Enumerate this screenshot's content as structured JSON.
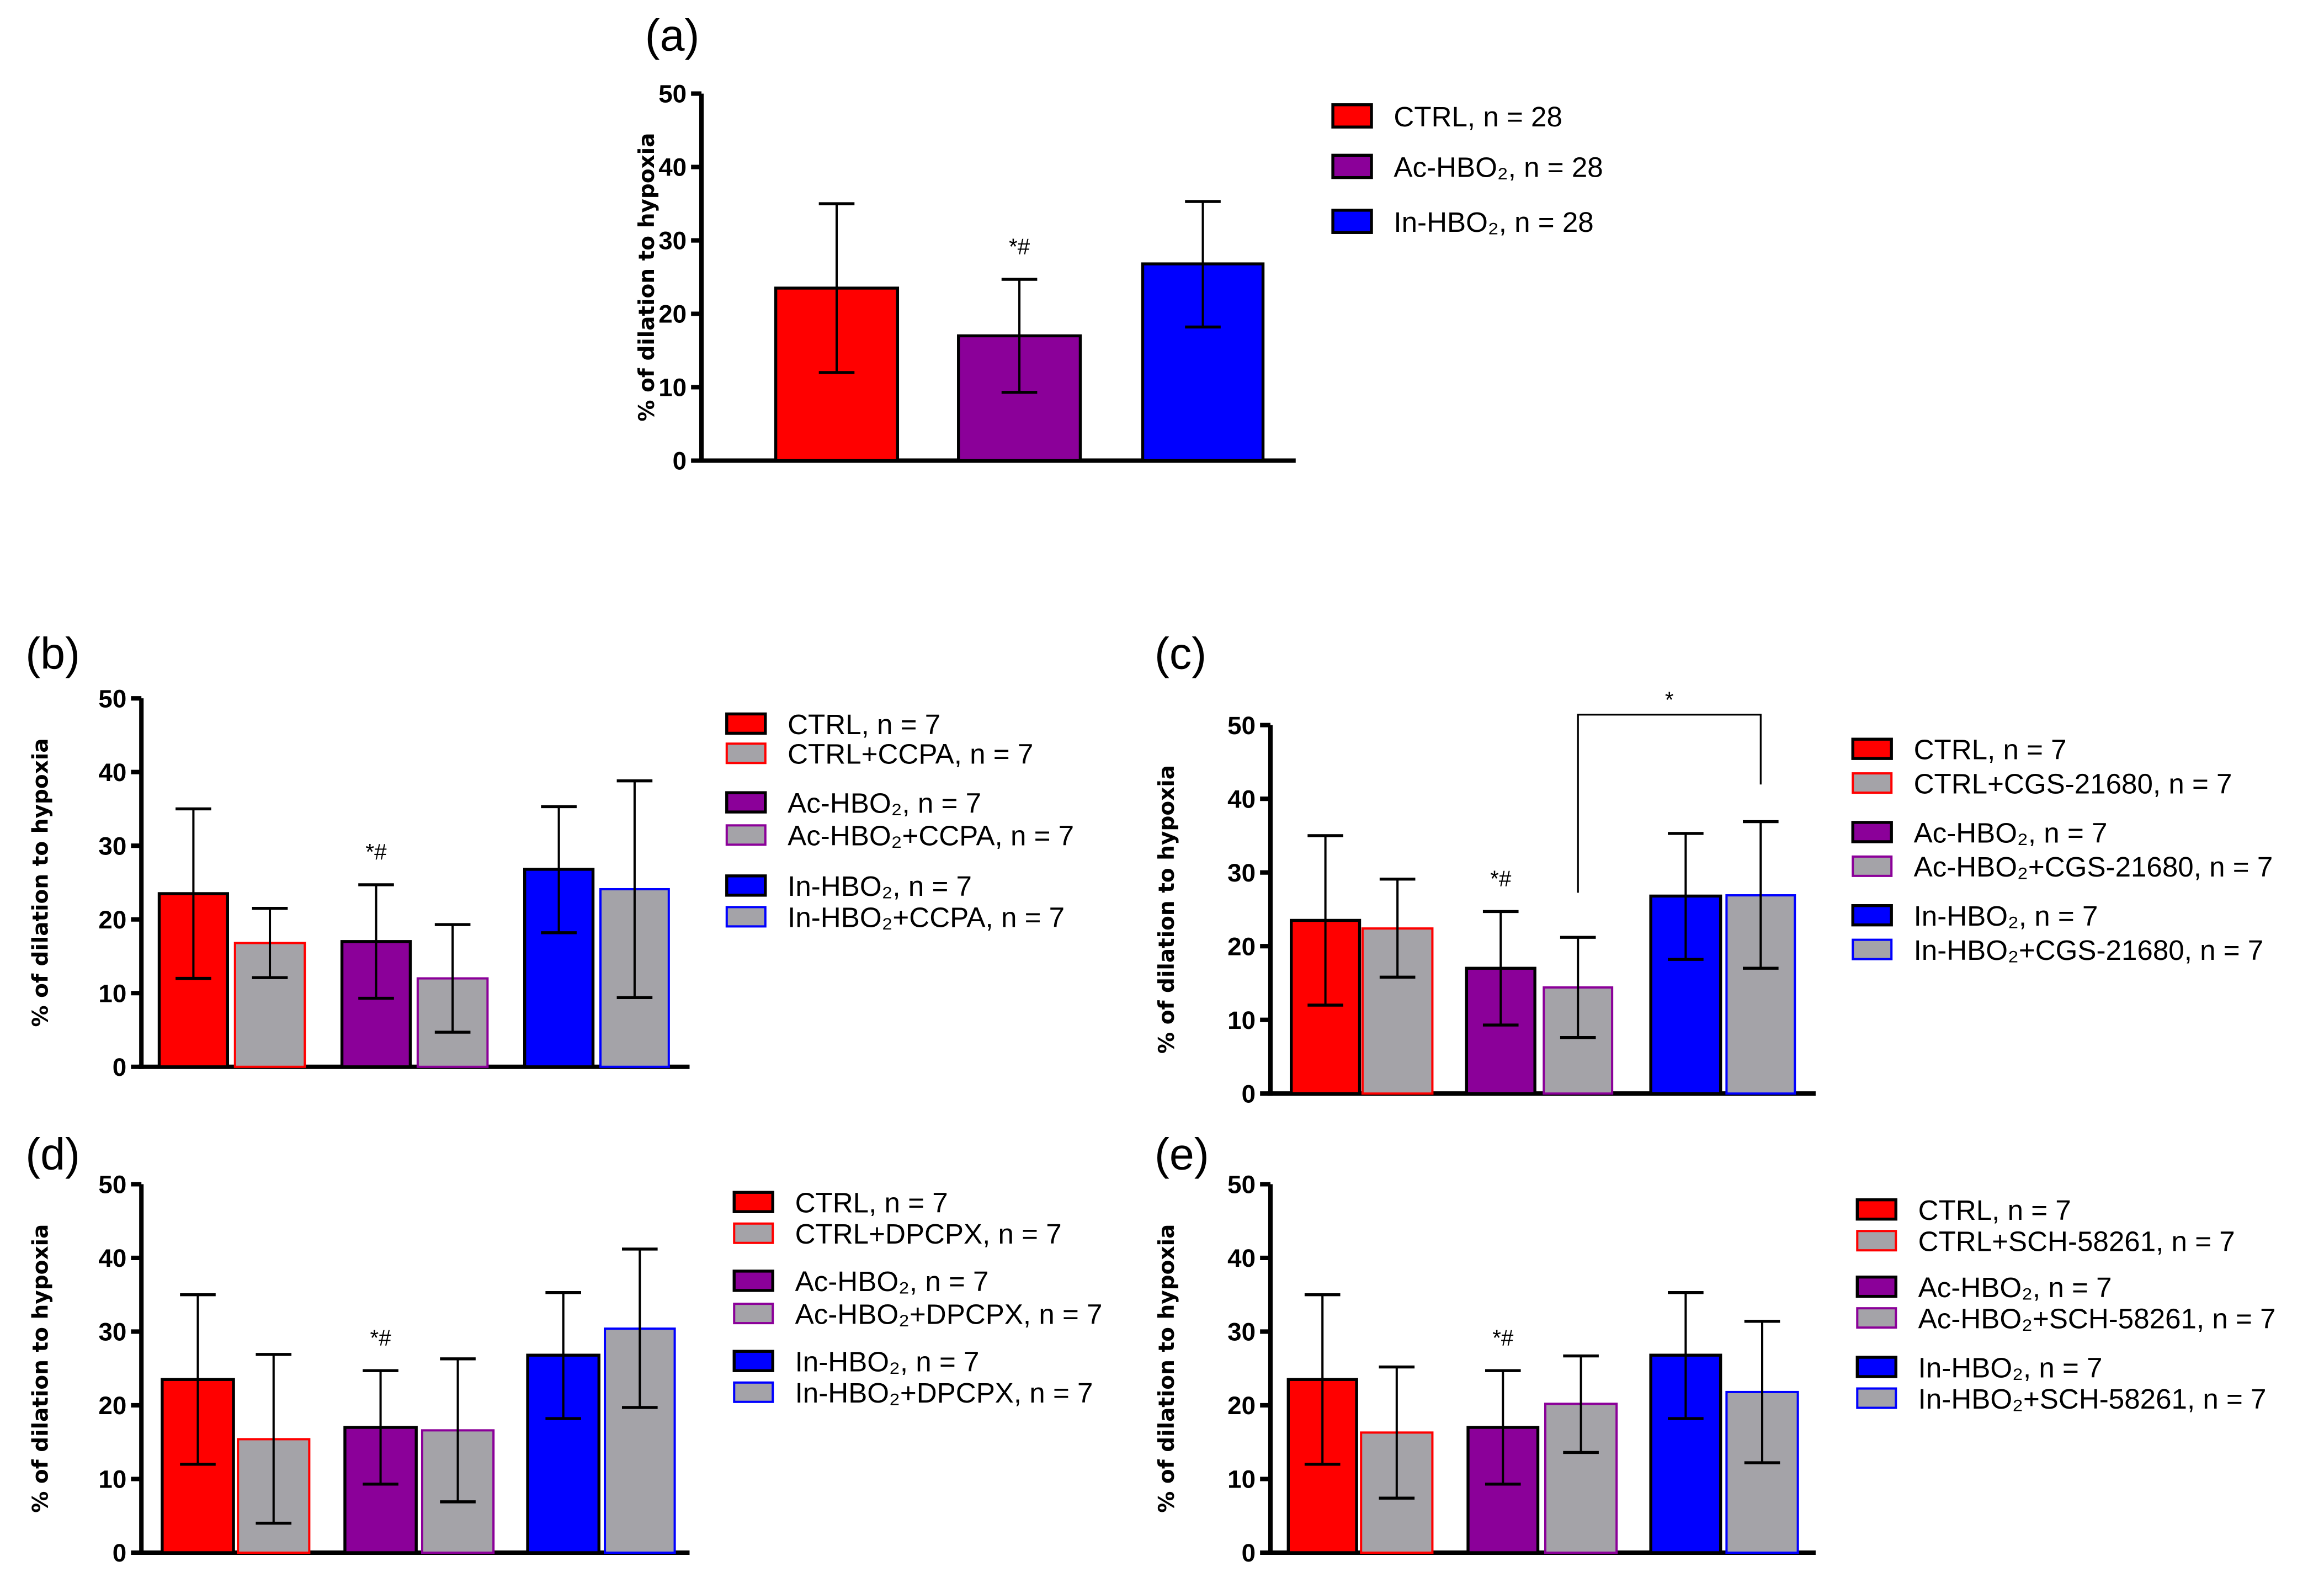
{
  "chart_data": [
    {
      "panel": "(a)",
      "type": "bar",
      "ylabel": "% of dilation to hypoxia",
      "ylim": [
        0,
        50
      ],
      "yticks": [
        "0",
        "10",
        "20",
        "30",
        "40",
        "50"
      ],
      "series": [
        {
          "name": "CTRL, n = 28",
          "value": 23.5,
          "err_low": 12.0,
          "err_high": 35.0,
          "fill": "#ff0000",
          "stroke": "#000000",
          "annotation": ""
        },
        {
          "name": "Ac-HBO₂, n = 28",
          "value": 17.0,
          "err_low": 9.3,
          "err_high": 24.7,
          "fill": "#8b0099",
          "stroke": "#000000",
          "annotation": "*#"
        },
        {
          "name": "In-HBO₂, n = 28",
          "value": 26.8,
          "err_low": 18.2,
          "err_high": 35.3,
          "fill": "#0000ff",
          "stroke": "#000000",
          "annotation": ""
        }
      ]
    },
    {
      "panel": "(b)",
      "type": "bar",
      "ylabel": "% of dilation to hypoxia",
      "ylim": [
        0,
        50
      ],
      "yticks": [
        "0",
        "10",
        "20",
        "30",
        "40",
        "50"
      ],
      "series": [
        {
          "name": "CTRL, n = 7",
          "value": 23.5,
          "err_low": 12.0,
          "err_high": 35.0,
          "fill": "#ff0000",
          "stroke": "#000000",
          "annotation": ""
        },
        {
          "name": "CTRL+CCPA, n = 7",
          "value": 16.8,
          "err_low": 12.1,
          "err_high": 21.5,
          "fill": "#a4a3a8",
          "stroke": "#ff0000",
          "annotation": ""
        },
        {
          "name": "Ac-HBO₂, n = 7",
          "value": 17.0,
          "err_low": 9.3,
          "err_high": 24.7,
          "fill": "#8b0099",
          "stroke": "#000000",
          "annotation": "*#"
        },
        {
          "name": "Ac-HBO₂+CCPA, n = 7",
          "value": 12.0,
          "err_low": 4.7,
          "err_high": 19.3,
          "fill": "#a4a3a8",
          "stroke": "#8b0099",
          "annotation": ""
        },
        {
          "name": "In-HBO₂, n = 7",
          "value": 26.8,
          "err_low": 18.2,
          "err_high": 35.3,
          "fill": "#0000ff",
          "stroke": "#000000",
          "annotation": ""
        },
        {
          "name": "In-HBO₂+CCPA, n = 7",
          "value": 24.1,
          "err_low": 9.4,
          "err_high": 38.8,
          "fill": "#a4a3a8",
          "stroke": "#0000ff",
          "annotation": ""
        }
      ]
    },
    {
      "panel": "(c)",
      "type": "bar",
      "ylabel": "% of dilation to hypoxia",
      "ylim": [
        0,
        50
      ],
      "yticks": [
        "0",
        "10",
        "20",
        "30",
        "40",
        "50"
      ],
      "comparison": {
        "from": 3,
        "to": 5,
        "label": "*"
      },
      "series": [
        {
          "name": "CTRL, n = 7",
          "value": 23.5,
          "err_low": 12.0,
          "err_high": 35.0,
          "fill": "#ff0000",
          "stroke": "#000000",
          "annotation": ""
        },
        {
          "name": "CTRL+CGS-21680, n = 7",
          "value": 22.4,
          "err_low": 15.8,
          "err_high": 29.1,
          "fill": "#a4a3a8",
          "stroke": "#ff0000",
          "annotation": ""
        },
        {
          "name": "Ac-HBO₂, n = 7",
          "value": 17.0,
          "err_low": 9.3,
          "err_high": 24.7,
          "fill": "#8b0099",
          "stroke": "#000000",
          "annotation": "*#"
        },
        {
          "name": "Ac-HBO₂+CGS-21680, n = 7",
          "value": 14.4,
          "err_low": 7.6,
          "err_high": 21.2,
          "fill": "#a4a3a8",
          "stroke": "#8b0099",
          "annotation": ""
        },
        {
          "name": "In-HBO₂, n = 7",
          "value": 26.8,
          "err_low": 18.2,
          "err_high": 35.3,
          "fill": "#0000ff",
          "stroke": "#000000",
          "annotation": ""
        },
        {
          "name": "In-HBO₂+CGS-21680, n = 7",
          "value": 26.9,
          "err_low": 17.0,
          "err_high": 36.9,
          "fill": "#a4a3a8",
          "stroke": "#0000ff",
          "annotation": ""
        }
      ]
    },
    {
      "panel": "(d)",
      "type": "bar",
      "ylabel": "% of dilation to hypoxia",
      "ylim": [
        0,
        50
      ],
      "yticks": [
        "0",
        "10",
        "20",
        "30",
        "40",
        "50"
      ],
      "series": [
        {
          "name": "CTRL, n = 7",
          "value": 23.5,
          "err_low": 12.0,
          "err_high": 35.0,
          "fill": "#ff0000",
          "stroke": "#000000",
          "annotation": ""
        },
        {
          "name": "CTRL+DPCPX, n = 7",
          "value": 15.4,
          "err_low": 4.0,
          "err_high": 26.9,
          "fill": "#a4a3a8",
          "stroke": "#ff0000",
          "annotation": ""
        },
        {
          "name": "Ac-HBO₂, n = 7",
          "value": 17.0,
          "err_low": 9.3,
          "err_high": 24.7,
          "fill": "#8b0099",
          "stroke": "#000000",
          "annotation": "*#"
        },
        {
          "name": "Ac-HBO₂+DPCPX, n = 7",
          "value": 16.6,
          "err_low": 6.9,
          "err_high": 26.3,
          "fill": "#a4a3a8",
          "stroke": "#8b0099",
          "annotation": ""
        },
        {
          "name": "In-HBO₂, n = 7",
          "value": 26.8,
          "err_low": 18.2,
          "err_high": 35.3,
          "fill": "#0000ff",
          "stroke": "#000000",
          "annotation": ""
        },
        {
          "name": "In-HBO₂+DPCPX, n = 7",
          "value": 30.4,
          "err_low": 19.7,
          "err_high": 41.2,
          "fill": "#a4a3a8",
          "stroke": "#0000ff",
          "annotation": ""
        }
      ]
    },
    {
      "panel": "(e)",
      "type": "bar",
      "ylabel": "% of dilation to hypoxia",
      "ylim": [
        0,
        50
      ],
      "yticks": [
        "0",
        "10",
        "20",
        "30",
        "40",
        "50"
      ],
      "series": [
        {
          "name": "CTRL, n = 7",
          "value": 23.5,
          "err_low": 12.0,
          "err_high": 35.0,
          "fill": "#ff0000",
          "stroke": "#000000",
          "annotation": ""
        },
        {
          "name": "CTRL+SCH-58261, n = 7",
          "value": 16.3,
          "err_low": 7.4,
          "err_high": 25.2,
          "fill": "#a4a3a8",
          "stroke": "#ff0000",
          "annotation": ""
        },
        {
          "name": "Ac-HBO₂, n = 7",
          "value": 17.0,
          "err_low": 9.3,
          "err_high": 24.7,
          "fill": "#8b0099",
          "stroke": "#000000",
          "annotation": "*#"
        },
        {
          "name": "Ac-HBO₂+SCH-58261, n = 7",
          "value": 20.2,
          "err_low": 13.6,
          "err_high": 26.7,
          "fill": "#a4a3a8",
          "stroke": "#8b0099",
          "annotation": ""
        },
        {
          "name": "In-HBO₂, n = 7",
          "value": 26.8,
          "err_low": 18.2,
          "err_high": 35.3,
          "fill": "#0000ff",
          "stroke": "#000000",
          "annotation": ""
        },
        {
          "name": "In-HBO₂+SCH-58261, n = 7",
          "value": 21.8,
          "err_low": 12.2,
          "err_high": 31.4,
          "fill": "#a4a3a8",
          "stroke": "#0000ff",
          "annotation": ""
        }
      ]
    }
  ]
}
